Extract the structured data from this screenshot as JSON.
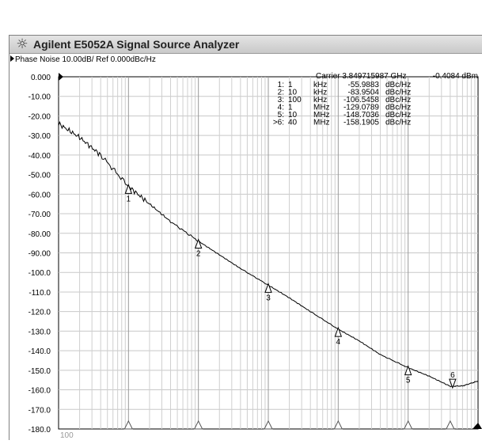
{
  "window": {
    "title": "Agilent E5052A Signal Source Analyzer",
    "icon": "sun-icon"
  },
  "trace": {
    "label": "Phase Noise 10.00dB/ Ref 0.000dBc/Hz"
  },
  "readout": {
    "carrier_label": "Carrier 3.849715987 GHz",
    "carrier_power": "-0.4084 dBm",
    "markers": [
      {
        "id": "1:",
        "offset_value": "1",
        "offset_unit": "kHz",
        "level": "-55.9883",
        "unit": "dBc/Hz"
      },
      {
        "id": "2:",
        "offset_value": "10",
        "offset_unit": "kHz",
        "level": "-83.9504",
        "unit": "dBc/Hz"
      },
      {
        "id": "3:",
        "offset_value": "100",
        "offset_unit": "kHz",
        "level": "-106.5458",
        "unit": "dBc/Hz"
      },
      {
        "id": "4:",
        "offset_value": "1",
        "offset_unit": "MHz",
        "level": "-129.0789",
        "unit": "dBc/Hz"
      },
      {
        "id": "5:",
        "offset_value": "10",
        "offset_unit": "MHz",
        "level": "-148.7036",
        "unit": "dBc/Hz"
      },
      {
        "id": ">6:",
        "offset_value": "40",
        "offset_unit": "MHz",
        "level": "-158.1905",
        "unit": "dBc/Hz"
      }
    ]
  },
  "chart_data": {
    "type": "line",
    "x_scale": "log",
    "xlim": [
      100,
      100000000
    ],
    "ylim": [
      -180,
      0
    ],
    "grid": true,
    "y_tick_labels": [
      "0.000",
      "-10.00",
      "-20.00",
      "-30.00",
      "-40.00",
      "-50.00",
      "-60.00",
      "-70.00",
      "-80.00",
      "-90.00",
      "-100.0",
      "-110.0",
      "-120.0",
      "-130.0",
      "-140.0",
      "-150.0",
      "-160.0",
      "-170.0",
      "-180.0"
    ],
    "x_tick_labels": [
      "100"
    ],
    "reference_level": 0,
    "series": [
      {
        "x": [
          100,
          200,
          400,
          1000,
          2000,
          4000,
          10000,
          20000,
          40000,
          100000,
          200000,
          400000,
          1000000,
          2000000,
          4000000,
          10000000,
          20000000,
          40000000,
          60000000,
          100000000
        ],
        "y": [
          -24,
          -31,
          -40,
          -56,
          -65,
          -74,
          -84,
          -91,
          -98,
          -106.5,
          -113,
          -120,
          -129,
          -135,
          -142,
          -148.7,
          -153,
          -158.2,
          -158,
          -155.5
        ]
      }
    ],
    "markers": [
      {
        "label": "1",
        "x": 1000,
        "y": -55.9883
      },
      {
        "label": "2",
        "x": 10000,
        "y": -83.9504
      },
      {
        "label": "3",
        "x": 100000,
        "y": -106.5458
      },
      {
        "label": "4",
        "x": 1000000,
        "y": -129.0789
      },
      {
        "label": "5",
        "x": 10000000,
        "y": -148.7036
      },
      {
        "label": "6",
        "x": 40000000,
        "y": -158.1905
      }
    ]
  }
}
